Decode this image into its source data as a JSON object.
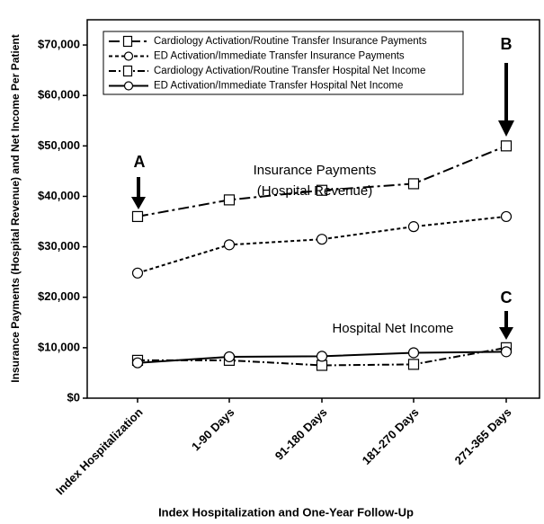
{
  "chart_data": {
    "type": "line",
    "y_label": "Insurance Payments (Hospital Revenue) and Net Income Per Patient",
    "x_label": "Index Hospitalization and One-Year Follow-Up",
    "categories": [
      "Index Hospitalization",
      "1-90 Days",
      "91-180 Days",
      "181-270 Days",
      "271-365 Days"
    ],
    "series": [
      {
        "name": "Cardiology Activation/Routine Transfer Insurance Payments",
        "color": "#000000",
        "style": "long-dash-dot",
        "marker": "square",
        "values": [
          36000,
          39300,
          41200,
          42500,
          50000
        ]
      },
      {
        "name": "ED Activation/Immediate Transfer Insurance Payments",
        "color": "#000000",
        "style": "dotted",
        "marker": "circle",
        "values": [
          24800,
          30400,
          31500,
          34000,
          36000
        ]
      },
      {
        "name": "Cardiology Activation/Routine Transfer Hospital Net Income",
        "color": "#000000",
        "style": "dash-dot",
        "marker": "square",
        "values": [
          7500,
          7500,
          6500,
          6700,
          10000
        ]
      },
      {
        "name": "ED Activation/Immediate Transfer Hospital Net Income",
        "color": "#000000",
        "style": "solid",
        "marker": "circle",
        "values": [
          7000,
          8200,
          8300,
          9000,
          9200
        ]
      }
    ],
    "ylim": [
      0,
      75000
    ],
    "yticks": [
      {
        "value": 0,
        "label": "$0"
      },
      {
        "value": 10000,
        "label": "$10,000"
      },
      {
        "value": 20000,
        "label": "$20,000"
      },
      {
        "value": 30000,
        "label": "$30,000"
      },
      {
        "value": 40000,
        "label": "$40,000"
      },
      {
        "value": 50000,
        "label": "$50,000"
      },
      {
        "value": 60000,
        "label": "$60,000"
      },
      {
        "value": 70000,
        "label": "$70,000"
      }
    ],
    "grid": false,
    "legend": "upper left",
    "annotations": [
      "A",
      "B",
      "C",
      "Insurance Payments",
      "(Hospital Revenue)",
      "Hospital Net Income"
    ]
  }
}
